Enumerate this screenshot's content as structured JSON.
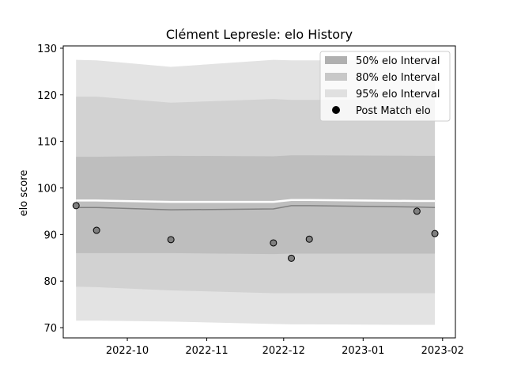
{
  "chart_data": {
    "type": "area",
    "title": "Clément Lepresle: elo History",
    "xlabel": "",
    "ylabel": "elo score",
    "ylim": [
      67.8,
      130.5
    ],
    "xlim": [
      "2022-09-06",
      "2023-02-06"
    ],
    "yticks": [
      70,
      80,
      90,
      100,
      110,
      120,
      130
    ],
    "xticks": [
      "2022-10-01",
      "2022-11-01",
      "2022-12-01",
      "2023-01-01",
      "2023-02-01"
    ],
    "xtick_labels": [
      "2022-10",
      "2022-11",
      "2022-12",
      "2023-01",
      "2023-02"
    ],
    "x": [
      "2022-09-11",
      "2022-09-19",
      "2022-10-18",
      "2022-11-27",
      "2022-12-04",
      "2022-12-11",
      "2023-01-22",
      "2023-01-29"
    ],
    "post_match_elo": [
      96.2,
      90.9,
      88.9,
      88.2,
      84.9,
      89.0,
      95.0,
      90.2
    ],
    "bands": [
      {
        "name": "95% elo Interval",
        "color": "#e3e3e3",
        "upper": [
          127.5,
          127.4,
          126.0,
          127.5,
          127.4,
          127.4,
          127.4,
          127.4
        ],
        "lower": [
          71.5,
          71.5,
          71.3,
          70.8,
          70.7,
          70.7,
          70.6,
          70.6
        ]
      },
      {
        "name": "80% elo Interval",
        "color": "#d2d2d2",
        "upper": [
          119.6,
          119.6,
          118.3,
          119.1,
          118.9,
          118.9,
          119.0,
          119.0
        ],
        "lower": [
          78.8,
          78.7,
          78.0,
          77.4,
          77.4,
          77.4,
          77.4,
          77.4
        ]
      },
      {
        "name": "50% elo Interval",
        "color": "#bebebe",
        "upper": [
          106.7,
          106.7,
          106.9,
          106.8,
          107.0,
          107.0,
          106.9,
          106.9
        ],
        "lower": [
          86.0,
          86.0,
          86.0,
          85.8,
          85.9,
          85.9,
          85.9,
          85.9
        ]
      }
    ],
    "mean_line": {
      "color": "#808080",
      "values": [
        95.8,
        95.8,
        95.3,
        95.5,
        96.2,
        96.2,
        95.9,
        95.8
      ]
    },
    "white_line": {
      "color": "#ffffff",
      "values": [
        97.3,
        97.3,
        97.0,
        97.0,
        97.4,
        97.4,
        97.2,
        97.2
      ]
    },
    "legend": {
      "placement": "top-right",
      "entries": [
        {
          "label": "50% elo Interval",
          "color": "#b0b0b0",
          "marker": "patch"
        },
        {
          "label": "80% elo Interval",
          "color": "#c8c8c8",
          "marker": "patch"
        },
        {
          "label": "95% elo Interval",
          "color": "#e0e0e0",
          "marker": "patch"
        },
        {
          "label": "Post Match elo",
          "color": "#000000",
          "marker": "dot"
        }
      ]
    },
    "point_color": "#808080",
    "grid": false
  }
}
